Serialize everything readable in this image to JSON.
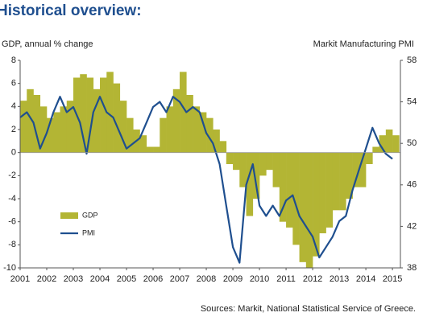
{
  "chart_data": {
    "type": "combo",
    "title": "Historical overview:",
    "y_label": "GDP, annual % change",
    "y2_label": "Markit Manufacturing PMI",
    "source": "Sources: Markit, National Statistical Service of Greece.",
    "xlim": [
      2001,
      2015.3
    ],
    "xticks": [
      2001,
      2002,
      2003,
      2004,
      2005,
      2006,
      2007,
      2008,
      2009,
      2010,
      2011,
      2012,
      2013,
      2014,
      2015
    ],
    "ylim": [
      -10,
      8
    ],
    "yticks": [
      -10,
      -8,
      -6,
      -4,
      -2,
      0,
      2,
      4,
      6,
      8
    ],
    "y2lim": [
      38,
      58
    ],
    "y2ticks": [
      38,
      42,
      46,
      50,
      54,
      58
    ],
    "legend": "lower left",
    "series": [
      {
        "name": "GDP",
        "type": "bar",
        "color": "#b3b534",
        "x": [
          2001,
          2001.25,
          2001.5,
          2001.75,
          2002,
          2002.25,
          2002.5,
          2002.75,
          2003,
          2003.25,
          2003.5,
          2003.75,
          2004,
          2004.25,
          2004.5,
          2004.75,
          2005,
          2005.25,
          2005.5,
          2005.75,
          2006,
          2006.25,
          2006.5,
          2006.75,
          2007,
          2007.25,
          2007.5,
          2007.75,
          2008,
          2008.25,
          2008.5,
          2008.75,
          2009,
          2009.25,
          2009.5,
          2009.75,
          2010,
          2010.25,
          2010.5,
          2010.75,
          2011,
          2011.25,
          2011.5,
          2011.75,
          2012,
          2012.25,
          2012.5,
          2012.75,
          2013,
          2013.25,
          2013.5,
          2013.75,
          2014,
          2014.25,
          2014.5,
          2014.75,
          2015
        ],
        "values": [
          4.5,
          5.5,
          5,
          4,
          3,
          3.5,
          4,
          4.5,
          6.5,
          6.8,
          6.5,
          5.5,
          6.5,
          7,
          6,
          4.5,
          3,
          2,
          1.5,
          0.5,
          0.5,
          3,
          4,
          5.5,
          7,
          5,
          4,
          3.5,
          3,
          2,
          1,
          -1,
          -1.5,
          -3,
          -5.5,
          -4,
          -2,
          -1.5,
          -3,
          -6,
          -6.5,
          -8,
          -9.5,
          -10,
          -9,
          -7,
          -6.5,
          -5,
          -5,
          -4,
          -3,
          -3,
          -1,
          0.5,
          1.5,
          2,
          1.5
        ]
      },
      {
        "name": "PMI",
        "type": "line",
        "color": "#1f4f8f",
        "axis": "y2",
        "x": [
          2001,
          2001.25,
          2001.5,
          2001.75,
          2002,
          2002.25,
          2002.5,
          2002.75,
          2003,
          2003.25,
          2003.5,
          2003.75,
          2004,
          2004.25,
          2004.5,
          2004.75,
          2005,
          2005.25,
          2005.5,
          2005.75,
          2006,
          2006.25,
          2006.5,
          2006.75,
          2007,
          2007.25,
          2007.5,
          2007.75,
          2008,
          2008.25,
          2008.5,
          2008.75,
          2009,
          2009.25,
          2009.5,
          2009.75,
          2010,
          2010.25,
          2010.5,
          2010.75,
          2011,
          2011.25,
          2011.5,
          2011.75,
          2012,
          2012.25,
          2012.5,
          2012.75,
          2013,
          2013.25,
          2013.5,
          2013.75,
          2014,
          2014.25,
          2014.5,
          2014.75,
          2015
        ],
        "values": [
          52.5,
          53,
          52,
          49.5,
          51,
          53,
          54.5,
          53,
          53.5,
          52,
          49,
          53,
          54.5,
          53,
          52.5,
          51,
          49.5,
          50,
          50.5,
          52,
          53.5,
          54,
          53,
          54.5,
          54,
          53,
          53.5,
          53,
          51,
          50,
          48,
          44,
          40,
          38.5,
          46,
          48,
          44,
          43,
          44,
          43,
          44.5,
          45,
          43,
          42,
          41,
          39,
          40,
          41,
          42.5,
          43,
          45.5,
          47.5,
          49.5,
          51.5,
          50,
          49,
          48.5
        ]
      }
    ]
  }
}
